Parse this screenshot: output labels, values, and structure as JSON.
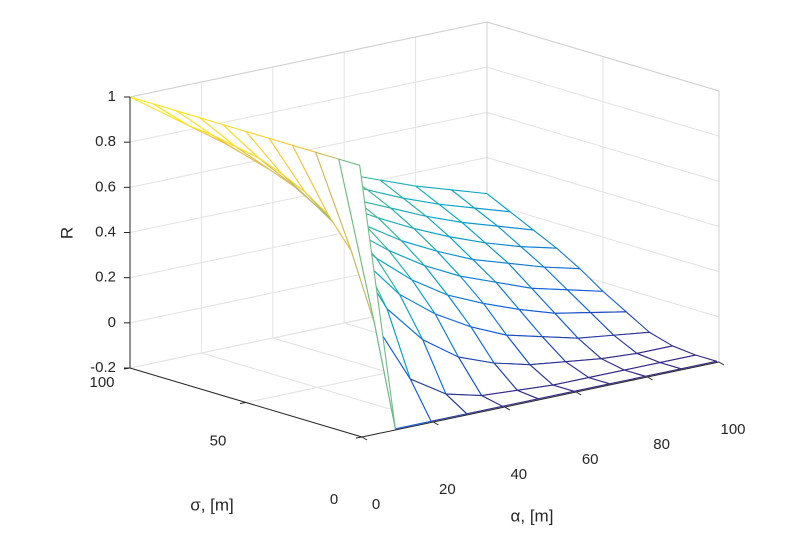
{
  "chart_data": {
    "type": "mesh",
    "xlabel": "α, [m]",
    "ylabel": "σ, [m]",
    "zlabel": "R",
    "x": [
      0,
      10,
      20,
      30,
      40,
      50,
      60,
      70,
      80,
      90,
      100
    ],
    "y": [
      1,
      10,
      20,
      30,
      40,
      50,
      60,
      70,
      80,
      90,
      100
    ],
    "z": [
      [
        1.0,
        -0.2,
        -0.2,
        -0.2,
        -0.2,
        -0.2,
        -0.2,
        -0.2,
        -0.2,
        -0.2,
        -0.2
      ],
      [
        1.0,
        0.24,
        -0.04,
        -0.14,
        -0.18,
        -0.19,
        -0.2,
        -0.2,
        -0.2,
        -0.2,
        -0.2
      ],
      [
        1.0,
        0.53,
        0.24,
        0.07,
        -0.04,
        -0.1,
        -0.14,
        -0.16,
        -0.18,
        -0.19,
        -0.19
      ],
      [
        1.0,
        0.66,
        0.42,
        0.24,
        0.12,
        0.03,
        -0.04,
        -0.08,
        -0.12,
        -0.14,
        -0.16
      ],
      [
        1.0,
        0.73,
        0.53,
        0.37,
        0.24,
        0.14,
        0.07,
        0.01,
        -0.04,
        -0.07,
        -0.1
      ],
      [
        1.0,
        0.78,
        0.6,
        0.46,
        0.34,
        0.24,
        0.16,
        0.1,
        0.04,
        0.0,
        -0.04
      ],
      [
        1.0,
        0.82,
        0.66,
        0.53,
        0.42,
        0.32,
        0.24,
        0.17,
        0.12,
        0.07,
        0.03
      ],
      [
        1.0,
        0.84,
        0.7,
        0.58,
        0.48,
        0.39,
        0.31,
        0.24,
        0.18,
        0.13,
        0.09
      ],
      [
        1.0,
        0.86,
        0.73,
        0.62,
        0.53,
        0.44,
        0.37,
        0.3,
        0.24,
        0.19,
        0.14
      ],
      [
        1.0,
        0.87,
        0.76,
        0.66,
        0.57,
        0.49,
        0.42,
        0.35,
        0.29,
        0.24,
        0.19
      ],
      [
        1.0,
        0.89,
        0.78,
        0.69,
        0.6,
        0.53,
        0.46,
        0.4,
        0.34,
        0.29,
        0.24
      ]
    ],
    "xlim": [
      0,
      100
    ],
    "ylim": [
      0,
      100
    ],
    "zlim": [
      -0.2,
      1
    ],
    "xticks": [
      0,
      20,
      40,
      60,
      80,
      100
    ],
    "yticks": [
      0,
      50,
      100
    ],
    "zticks": [
      -0.2,
      0,
      0.2,
      0.4,
      0.6,
      0.8,
      1
    ],
    "grid": true,
    "colormap": [
      "#352a87",
      "#0f5cdd",
      "#1481d6",
      "#06a4ca",
      "#2eb7a4",
      "#87bf77",
      "#d1bb59",
      "#fec832",
      "#f9fb0e"
    ]
  }
}
